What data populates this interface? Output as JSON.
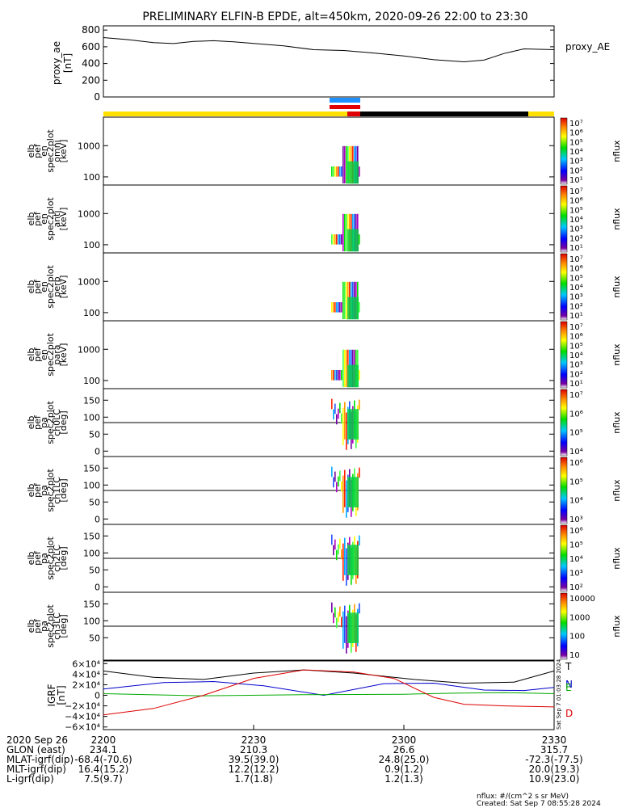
{
  "title": "PRELIMINARY ELFIN-B EPDE, alt=450km, 2020-09-26 22:00 to 23:30",
  "proxy_ae": {
    "ylabel": [
      "proxy_ae",
      "[nT]"
    ],
    "legend": "proxy_AE",
    "yticks": [
      "800",
      "600",
      "400",
      "200",
      "0"
    ],
    "ylim": [
      0,
      850
    ],
    "series": [
      {
        "t": 0,
        "v": 710
      },
      {
        "t": 5,
        "v": 685
      },
      {
        "t": 10,
        "v": 650
      },
      {
        "t": 14,
        "v": 638
      },
      {
        "t": 18,
        "v": 665
      },
      {
        "t": 22,
        "v": 672
      },
      {
        "t": 26,
        "v": 660
      },
      {
        "t": 30,
        "v": 640
      },
      {
        "t": 36,
        "v": 610
      },
      {
        "t": 42,
        "v": 565
      },
      {
        "t": 48,
        "v": 555
      },
      {
        "t": 54,
        "v": 525
      },
      {
        "t": 60,
        "v": 490
      },
      {
        "t": 66,
        "v": 445
      },
      {
        "t": 72,
        "v": 420
      },
      {
        "t": 76,
        "v": 440
      },
      {
        "t": 80,
        "v": 520
      },
      {
        "t": 84,
        "v": 575
      },
      {
        "t": 90,
        "v": 565
      }
    ]
  },
  "spectra": [
    {
      "ylabel": [
        "elb",
        "pef",
        "en",
        "spec2plot",
        "omni",
        "[keV]"
      ],
      "kind": "energy",
      "yticks": [
        "1000",
        "100"
      ],
      "cbar_ticks": [
        "10⁷",
        "10⁶",
        "10⁵",
        "10⁴",
        "10³",
        "10²",
        "10¹"
      ],
      "cbar_label": "nflux"
    },
    {
      "ylabel": [
        "elb",
        "pef",
        "en",
        "spec2plot",
        "anti",
        "[keV]"
      ],
      "kind": "energy",
      "yticks": [
        "1000",
        "100"
      ],
      "cbar_ticks": [
        "10⁷",
        "10⁶",
        "10⁵",
        "10⁴",
        "10³",
        "10²",
        "10¹"
      ],
      "cbar_label": "nflux"
    },
    {
      "ylabel": [
        "elb",
        "pef",
        "en",
        "spec2plot",
        "perp",
        "[keV]"
      ],
      "kind": "energy",
      "yticks": [
        "1000",
        "100"
      ],
      "cbar_ticks": [
        "10⁷",
        "10⁶",
        "10⁵",
        "10⁴",
        "10³",
        "10²",
        "10¹"
      ],
      "cbar_label": "nflux"
    },
    {
      "ylabel": [
        "elb",
        "pef",
        "en",
        "spec2plot",
        "para",
        "[keV]"
      ],
      "kind": "energy",
      "yticks": [
        "1000",
        "100"
      ],
      "cbar_ticks": [
        "10⁷",
        "10⁶",
        "10⁵",
        "10⁴",
        "10³",
        "10²",
        "10¹"
      ],
      "cbar_label": "nflux"
    },
    {
      "ylabel": [
        "elb",
        "pef",
        "pa",
        "spec2plot",
        "ch0LC",
        "[deg]"
      ],
      "kind": "pa",
      "yticks": [
        "150",
        "100",
        "50",
        "0"
      ],
      "cbar_ticks": [
        "10⁷",
        "10⁶",
        "10⁵",
        "10⁴"
      ],
      "cbar_label": "nflux"
    },
    {
      "ylabel": [
        "elb",
        "pef",
        "pa",
        "spec2plot",
        "ch1LC",
        "[deg]"
      ],
      "kind": "pa",
      "yticks": [
        "150",
        "100",
        "50",
        "0"
      ],
      "cbar_ticks": [
        "10⁶",
        "10⁵",
        "10⁴",
        "10³"
      ],
      "cbar_label": "nflux"
    },
    {
      "ylabel": [
        "elb",
        "pef",
        "pa",
        "spec2plot",
        "ch2LC",
        "[deg]"
      ],
      "kind": "pa",
      "yticks": [
        "150",
        "100",
        "50",
        "0"
      ],
      "cbar_ticks": [
        "10⁶",
        "10⁵",
        "10⁴",
        "10³",
        "10²"
      ],
      "cbar_label": "nflux"
    },
    {
      "ylabel": [
        "elb",
        "pef",
        "pa",
        "spec2plot",
        "ch3LC",
        "[deg]"
      ],
      "kind": "pa",
      "yticks": [
        "150",
        "100",
        "50"
      ],
      "cbar_ticks": [
        "10000",
        "1000",
        "100",
        "10"
      ],
      "cbar_label": "nflux"
    }
  ],
  "igrf": {
    "ylabel": [
      "IGRF",
      "[nT]"
    ],
    "yticks": [
      "6×10⁴",
      "4×10⁴",
      "2×10⁴",
      "0",
      "−2×10⁴",
      "−4×10⁴",
      "−6×10⁴"
    ],
    "legend": [
      {
        "label": "T",
        "color": "#000000"
      },
      {
        "label": "N",
        "color": "#0000cc"
      },
      {
        "label": "E",
        "color": "#00aa00"
      },
      {
        "label": "D",
        "color": "#dd0000"
      }
    ],
    "stamp": "Sat Sep  7 01:03:28 2024"
  },
  "xaxis": {
    "ticks": [
      "2200",
      "2230",
      "2300",
      "2330"
    ],
    "rows": [
      {
        "label": "2020 Sep 26",
        "values": [
          "",
          "",
          "",
          ""
        ]
      },
      {
        "label": "GLON (east)",
        "values": [
          "234.1",
          "210.3",
          "26.6",
          "315.7"
        ]
      },
      {
        "label": "MLAT-igrf(dip)",
        "values": [
          "-68.4(-70.6)",
          "39.5(39.0)",
          "24.8(25.0)",
          "-72.3(-77.5)"
        ]
      },
      {
        "label": "MLT-igrf(dip)",
        "values": [
          "16.4(15.2)",
          "12.2(12.2)",
          "0.9(1.2)",
          "20.0(19.3)"
        ]
      },
      {
        "label": "L-igrf(dip)",
        "values": [
          "7.5(9.7)",
          "1.7(1.8)",
          "1.2(1.3)",
          "10.9(23.0)"
        ]
      }
    ]
  },
  "footer": {
    "units": "nflux: #/(cm^2 s sr MeV)",
    "created": "Created: Sat Sep  7 08:55:28 2024"
  },
  "colors": {
    "state_bar_yellow": "#ffe000",
    "state_bar_black": "#000000",
    "science_zone_blue": "#1e90ff",
    "science_zone_red": "#e00000"
  }
}
